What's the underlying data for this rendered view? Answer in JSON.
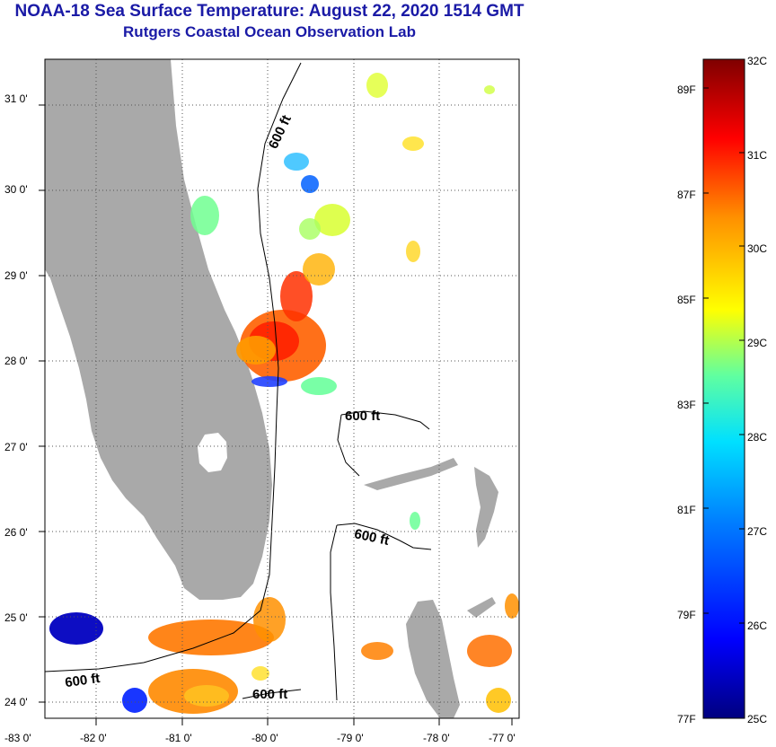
{
  "header": {
    "title": "NOAA-18 Sea Surface Temperature:  August 22, 2020 1514 GMT",
    "subtitle": "Rutgers Coastal Ocean Observation Lab"
  },
  "map": {
    "lon_ticks": [
      "-83 0'",
      "-82 0'",
      "-81 0'",
      "-80 0'",
      "-79 0'",
      "-78 0'",
      "-77 0'"
    ],
    "lat_ticks": [
      "31 0'",
      "30 0'",
      "29 0'",
      "28 0'",
      "27 0'",
      "26 0'",
      "25 0'",
      "24 0'"
    ],
    "contour_labels": [
      "600 ft",
      "600 ft",
      "600 ft",
      "600 ft",
      "600 ft"
    ],
    "land_color": "#a9a9a9",
    "grid": "dotted"
  },
  "colorbar": {
    "celsius_labels": [
      "32C",
      "31C",
      "30C",
      "29C",
      "28C",
      "27C",
      "26C",
      "25C"
    ],
    "fahrenheit_labels": [
      "89F",
      "87F",
      "85F",
      "83F",
      "81F",
      "79F",
      "77F"
    ],
    "range_c": [
      25,
      32
    ],
    "colors": [
      "#000080",
      "#0000ff",
      "#0080ff",
      "#00ffff",
      "#80ff80",
      "#ffff00",
      "#ff8000",
      "#ff0000",
      "#800000"
    ]
  }
}
